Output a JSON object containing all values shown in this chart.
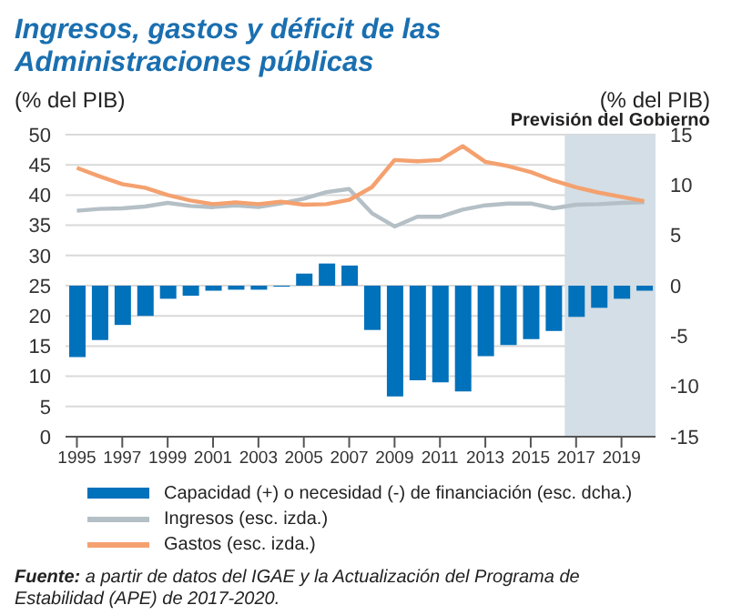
{
  "chart_data": {
    "type": "line",
    "title": "Ingresos, gastos y déficit de las Administraciones públicas",
    "ylabel": "(% del PIB)",
    "y2label": "(% del PIB)",
    "x": [
      1995,
      1996,
      1997,
      1998,
      1999,
      2000,
      2001,
      2002,
      2003,
      2004,
      2005,
      2006,
      2007,
      2008,
      2009,
      2010,
      2011,
      2012,
      2013,
      2014,
      2015,
      2016,
      2017,
      2018,
      2019,
      2020
    ],
    "series": [
      {
        "name": "Capacidad (+) o necesidad (-) de financiación  (esc. dcha.)",
        "type": "bar",
        "axis": "y2",
        "color": "#0071bb",
        "values": [
          -7.1,
          -5.4,
          -3.9,
          -3.0,
          -1.3,
          -1.0,
          -0.5,
          -0.4,
          -0.4,
          -0.1,
          1.2,
          2.2,
          2.0,
          -4.4,
          -11.0,
          -9.4,
          -9.6,
          -10.5,
          -7.0,
          -5.9,
          -5.3,
          -4.5,
          -3.1,
          -2.2,
          -1.3,
          -0.5
        ]
      },
      {
        "name": "Ingresos (esc. izda.)",
        "color": "#b4bfc6",
        "values": [
          37.4,
          37.7,
          37.8,
          38.1,
          38.7,
          38.2,
          38.0,
          38.3,
          38.0,
          38.6,
          39.4,
          40.5,
          41.0,
          37.0,
          34.8,
          36.4,
          36.4,
          37.6,
          38.3,
          38.6,
          38.6,
          37.8,
          38.4,
          38.5,
          38.7,
          38.8
        ]
      },
      {
        "name": "Gastos (esc. izda.)",
        "color": "#f4a16f",
        "values": [
          44.5,
          43.1,
          41.8,
          41.2,
          40.0,
          39.1,
          38.5,
          38.8,
          38.5,
          38.9,
          38.4,
          38.5,
          39.2,
          41.3,
          45.8,
          45.6,
          45.8,
          48.1,
          45.5,
          44.8,
          43.8,
          42.4,
          41.3,
          40.4,
          39.7,
          39.0
        ]
      }
    ],
    "xlim": [
      1994.5,
      2020.5
    ],
    "xticks": [
      1995,
      1997,
      1999,
      2001,
      2003,
      2005,
      2007,
      2009,
      2011,
      2013,
      2015,
      2017,
      2019
    ],
    "ylim": [
      0,
      50
    ],
    "yticks": [
      0,
      5,
      10,
      15,
      20,
      25,
      30,
      35,
      40,
      45,
      50
    ],
    "y2lim": [
      -15,
      15
    ],
    "y2ticks": [
      -15,
      -10,
      -5,
      0,
      5,
      10,
      15
    ],
    "bands": [
      {
        "axis": "x",
        "from": 2016.5,
        "to": 2020.5,
        "label": "Previsión del Gobierno",
        "color": "#d3dee6"
      }
    ],
    "grid": "y",
    "legend": "bottom",
    "marker": "none",
    "line_style": "solid",
    "annotations": [
      "Fuente: a partir de datos del IGAE y la Actualización del Programa de Estabilidad (APE) de 2017-2020."
    ]
  }
}
